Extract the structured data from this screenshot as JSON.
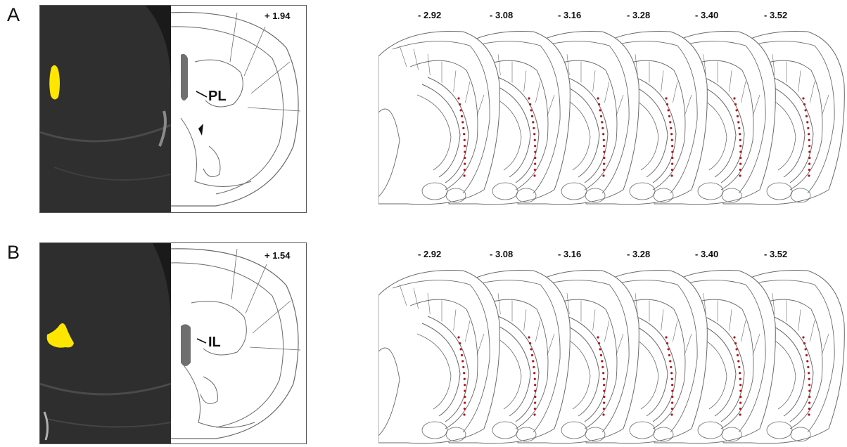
{
  "panels": [
    {
      "letter": "A",
      "coordinate": "+ 1.94",
      "region": "PL",
      "slice_labels": [
        "- 2.92",
        "- 3.08",
        "- 3.16",
        "- 3.28",
        "- 3.40",
        "- 3.52"
      ]
    },
    {
      "letter": "B",
      "coordinate": "+ 1.54",
      "region": "IL",
      "slice_labels": [
        "- 2.92",
        "- 3.08",
        "- 3.16",
        "- 3.28",
        "- 3.40",
        "- 3.52"
      ]
    }
  ],
  "colors": {
    "injection_site": "#ffe600",
    "marker_dots": "#b0141a",
    "atlas_lines": "#6a6a6a",
    "histology_bg": "#2b2b2b"
  }
}
